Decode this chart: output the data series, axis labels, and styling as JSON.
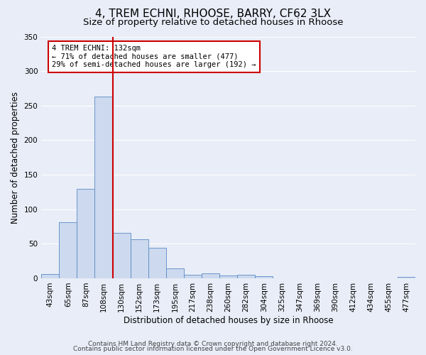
{
  "title": "4, TREM ECHNI, RHOOSE, BARRY, CF62 3LX",
  "subtitle": "Size of property relative to detached houses in Rhoose",
  "xlabel": "Distribution of detached houses by size in Rhoose",
  "ylabel": "Number of detached properties",
  "bar_labels": [
    "43sqm",
    "65sqm",
    "87sqm",
    "108sqm",
    "130sqm",
    "152sqm",
    "173sqm",
    "195sqm",
    "217sqm",
    "238sqm",
    "260sqm",
    "282sqm",
    "304sqm",
    "325sqm",
    "347sqm",
    "369sqm",
    "390sqm",
    "412sqm",
    "434sqm",
    "455sqm",
    "477sqm"
  ],
  "bar_values": [
    6,
    81,
    129,
    263,
    66,
    57,
    44,
    14,
    5,
    7,
    4,
    5,
    3,
    0,
    0,
    0,
    0,
    0,
    0,
    0,
    2
  ],
  "bar_color": "#ccd9ee",
  "bar_edge_color": "#5b8ac5",
  "vline_x_index": 4,
  "vline_color": "#cc0000",
  "annotation_title": "4 TREM ECHNI: 132sqm",
  "annotation_line1": "← 71% of detached houses are smaller (477)",
  "annotation_line2": "29% of semi-detached houses are larger (192) →",
  "annotation_box_color": "#ffffff",
  "annotation_box_edge": "#cc0000",
  "ylim": [
    0,
    350
  ],
  "yticks": [
    0,
    50,
    100,
    150,
    200,
    250,
    300,
    350
  ],
  "footer1": "Contains HM Land Registry data © Crown copyright and database right 2024.",
  "footer2": "Contains public sector information licensed under the Open Government Licence v3.0.",
  "bg_color": "#e8edf7",
  "plot_bg_color": "#e8edf7",
  "title_fontsize": 11,
  "subtitle_fontsize": 9.5,
  "axis_label_fontsize": 8.5,
  "tick_fontsize": 7.5,
  "footer_fontsize": 6.5
}
